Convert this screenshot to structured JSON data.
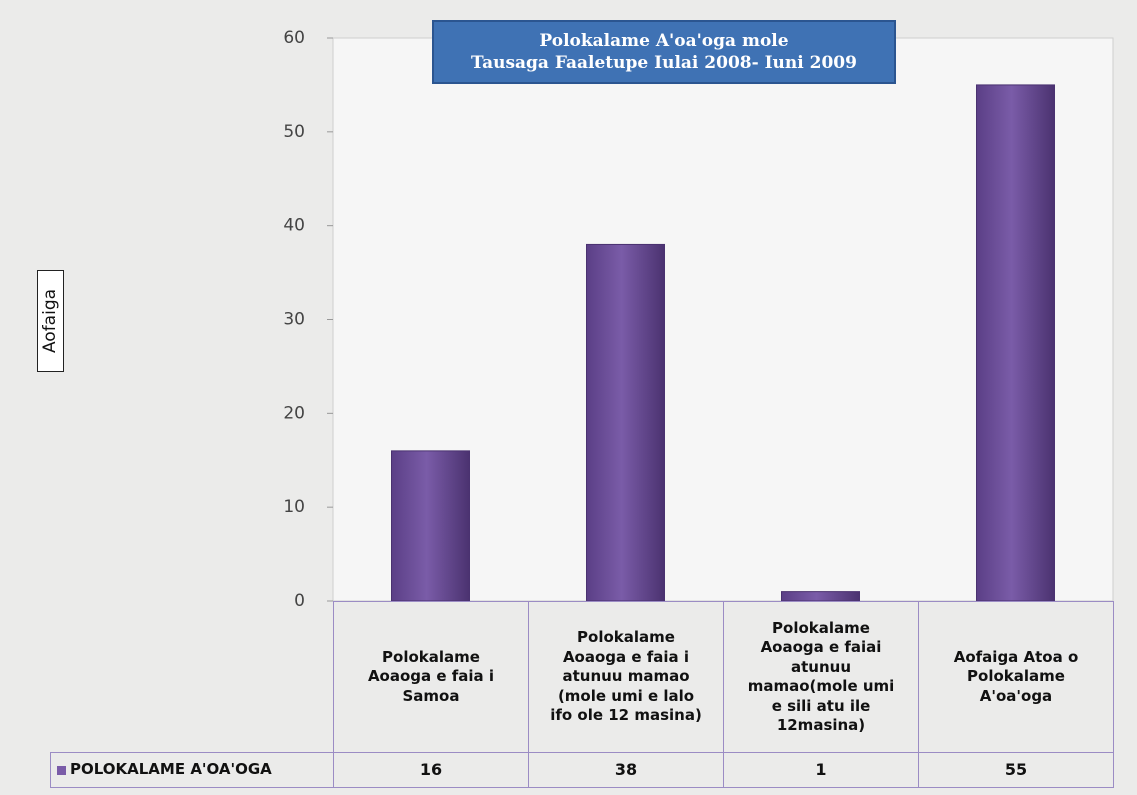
{
  "chart_data": {
    "type": "bar",
    "title": "Polokalame A'oa'oga mole",
    "subtitle": "Tausaga Faaletupe Iulai 2008- Iuni 2009",
    "y_label": "Aofaiga",
    "categories": [
      "Polokalame Aoaoga e faia i Samoa",
      "Polokalame Aoaoga e faia i atunuu mamao (mole umi e lalo ifo ole 12 masina)",
      "Polokalame Aoaoga e faiai atunuu mamao(mole umi e sili atu ile 12masina)",
      "Aofaiga Atoa o Polokalame A'oa'oga"
    ],
    "series": [
      {
        "name": "POLOKALAME A'OA'OGA",
        "color": "#7a5ca8",
        "values": [
          16,
          38,
          1,
          55
        ]
      }
    ],
    "ylim": [
      0,
      60
    ],
    "yticks": [
      0,
      10,
      20,
      30,
      40,
      50,
      60
    ],
    "grid": false
  }
}
